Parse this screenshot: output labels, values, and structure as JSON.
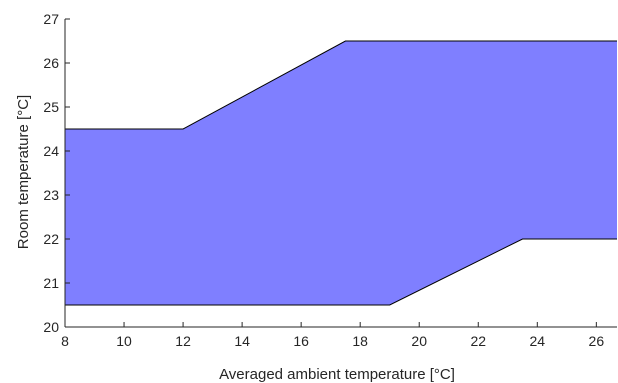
{
  "chart_data": {
    "type": "area",
    "title": "",
    "xlabel": "Averaged ambient temperature [°C]",
    "ylabel": "Room temperature [°C]",
    "xlim": [
      8,
      26.7
    ],
    "ylim": [
      20,
      27
    ],
    "xticks": [
      8,
      10,
      12,
      14,
      16,
      18,
      20,
      22,
      24,
      26
    ],
    "yticks": [
      20,
      21,
      22,
      23,
      24,
      25,
      26,
      27
    ],
    "grid": false,
    "fill_color": "#7F7FFF",
    "edge_color": "#000000",
    "series": [
      {
        "upper": {
          "x": [
            8,
            12,
            17.5,
            26.7
          ],
          "y": [
            24.5,
            24.5,
            26.5,
            26.5
          ]
        },
        "lower": {
          "x": [
            8,
            19,
            23.5,
            26.7
          ],
          "y": [
            20.5,
            20.5,
            22,
            22
          ]
        }
      }
    ]
  }
}
